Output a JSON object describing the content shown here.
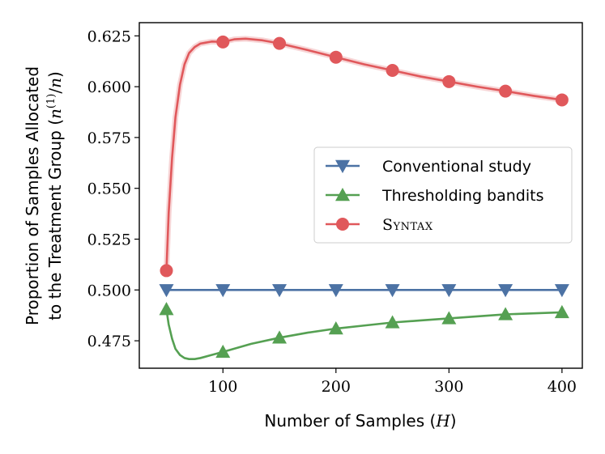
{
  "chart_data": {
    "type": "line",
    "title": "",
    "xlabel_parts": [
      "Number of Samples (",
      "H",
      ")"
    ],
    "ylabel_line1": "Proportion of Samples Allocated",
    "ylabel_line2_parts": [
      "to the Treatment Group (",
      "n",
      "(1)",
      "/",
      "n",
      ")"
    ],
    "xlim": [
      26,
      418
    ],
    "ylim": [
      0.4615,
      0.6315
    ],
    "xticks": [
      100,
      200,
      300,
      400
    ],
    "xtick_labels": [
      "100",
      "200",
      "300",
      "400"
    ],
    "yticks": [
      0.475,
      0.5,
      0.525,
      0.55,
      0.575,
      0.6,
      0.625
    ],
    "ytick_labels": [
      "0.475",
      "0.500",
      "0.525",
      "0.550",
      "0.575",
      "0.600",
      "0.625"
    ],
    "grid": false,
    "legend_position": "center-right",
    "series": [
      {
        "name": "Conventional study",
        "color": "#4c72a4",
        "marker": "triangle-down",
        "x": [
          50,
          100,
          150,
          200,
          250,
          300,
          350,
          400
        ],
        "y": [
          0.5,
          0.5,
          0.5,
          0.5,
          0.5,
          0.5,
          0.5,
          0.5
        ],
        "curve_x": [
          50,
          400
        ],
        "curve_y": [
          0.5,
          0.5
        ]
      },
      {
        "name": "Thresholding bandits",
        "color": "#55a052",
        "marker": "triangle-up",
        "x": [
          50,
          100,
          150,
          200,
          250,
          300,
          350,
          400
        ],
        "y": [
          0.4905,
          0.4695,
          0.4765,
          0.481,
          0.484,
          0.486,
          0.488,
          0.489
        ],
        "curve_x": [
          50,
          52,
          55,
          58,
          62,
          66,
          70,
          75,
          80,
          90,
          100,
          125,
          150,
          175,
          200,
          225,
          250,
          275,
          300,
          325,
          350,
          375,
          400
        ],
        "curve_y": [
          0.4905,
          0.483,
          0.476,
          0.471,
          0.468,
          0.4665,
          0.466,
          0.466,
          0.4665,
          0.468,
          0.4695,
          0.4735,
          0.4765,
          0.479,
          0.481,
          0.4825,
          0.484,
          0.485,
          0.486,
          0.487,
          0.488,
          0.4885,
          0.489
        ]
      },
      {
        "name": "Syntax",
        "color": "#e0585b",
        "marker": "circle",
        "x": [
          50,
          100,
          150,
          200,
          250,
          300,
          350,
          400
        ],
        "y": [
          0.5095,
          0.622,
          0.6213,
          0.6145,
          0.608,
          0.6025,
          0.5978,
          0.5935
        ],
        "curve_x": [
          50,
          52,
          55,
          58,
          62,
          66,
          70,
          75,
          80,
          90,
          100,
          110,
          120,
          135,
          150,
          175,
          200,
          225,
          250,
          275,
          300,
          325,
          350,
          375,
          400
        ],
        "curve_y": [
          0.5095,
          0.538,
          0.565,
          0.585,
          0.601,
          0.611,
          0.6165,
          0.6195,
          0.6212,
          0.6222,
          0.622,
          0.6233,
          0.6236,
          0.6228,
          0.6213,
          0.618,
          0.6145,
          0.611,
          0.608,
          0.605,
          0.6025,
          0.6,
          0.5978,
          0.5955,
          0.5935
        ]
      }
    ]
  }
}
